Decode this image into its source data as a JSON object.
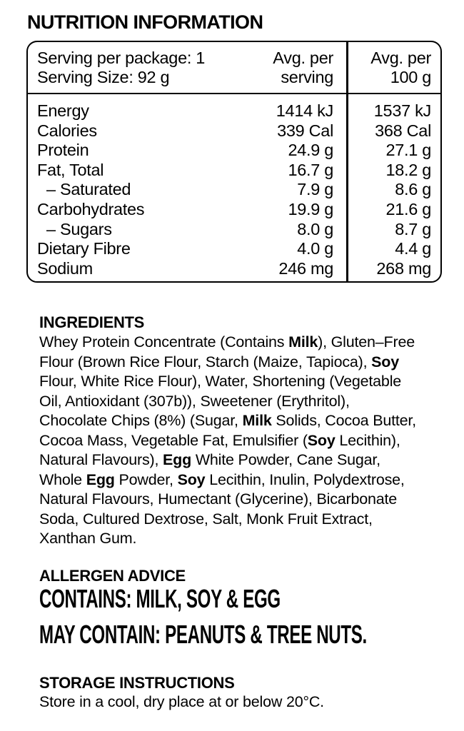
{
  "colors": {
    "ink": "#000000",
    "background": "#ffffff"
  },
  "title": "NUTRITION INFORMATION",
  "nutrition_table": {
    "header": {
      "col1_line1": "Serving per package: 1",
      "col1_line2": "Serving Size: 92 g",
      "col2_line1": "Avg. per",
      "col2_line2": "serving",
      "col3_line1": "Avg. per",
      "col3_line2": "100 g"
    },
    "rows": [
      {
        "label": "Energy",
        "per_serving": "1414 kJ",
        "per_100g": "1537 kJ",
        "indent": false
      },
      {
        "label": "Calories",
        "per_serving": "339 Cal",
        "per_100g": "368 Cal",
        "indent": false
      },
      {
        "label": "Protein",
        "per_serving": "24.9 g",
        "per_100g": "27.1 g",
        "indent": false
      },
      {
        "label": "Fat, Total",
        "per_serving": "16.7 g",
        "per_100g": "18.2 g",
        "indent": false
      },
      {
        "label": "– Saturated",
        "per_serving": "7.9 g",
        "per_100g": "8.6 g",
        "indent": true
      },
      {
        "label": "Carbohydrates",
        "per_serving": "19.9 g",
        "per_100g": "21.6 g",
        "indent": false
      },
      {
        "label": "– Sugars",
        "per_serving": "8.0 g",
        "per_100g": "8.7 g",
        "indent": true
      },
      {
        "label": "Dietary Fibre",
        "per_serving": "4.0 g",
        "per_100g": "4.4 g",
        "indent": false
      },
      {
        "label": "Sodium",
        "per_serving": "246 mg",
        "per_100g": "268 mg",
        "indent": false
      }
    ]
  },
  "ingredients": {
    "heading": "INGREDIENTS",
    "runs": [
      {
        "t": "Whey Protein Concentrate (Contains "
      },
      {
        "t": "Milk",
        "b": true
      },
      {
        "t": "), Gluten–Free Flour (Brown Rice Flour, Starch (Maize, Tapioca), "
      },
      {
        "t": "Soy",
        "b": true
      },
      {
        "t": " Flour, White Rice Flour), Water, Shortening (Vegetable Oil, Antioxidant (307b)), Sweetener (Erythritol), Chocolate Chips (8%) (Sugar, "
      },
      {
        "t": "Milk",
        "b": true
      },
      {
        "t": " Solids, Cocoa Butter, Cocoa Mass, Vegetable Fat, Emulsifier ("
      },
      {
        "t": "Soy",
        "b": true
      },
      {
        "t": " Lecithin), Natural Flavours), "
      },
      {
        "t": "Egg",
        "b": true
      },
      {
        "t": " White Powder, Cane Sugar, Whole "
      },
      {
        "t": "Egg",
        "b": true
      },
      {
        "t": " Powder, "
      },
      {
        "t": "Soy",
        "b": true
      },
      {
        "t": " Lecithin, Inulin, Polydextrose, Natural Flavours, Humectant (Glycerine), Bicarbonate Soda, Cultured Dextrose, Salt, Monk Fruit Extract, Xanthan Gum."
      }
    ]
  },
  "allergen": {
    "heading": "ALLERGEN ADVICE",
    "contains": "CONTAINS: MILK, SOY & EGG",
    "may_contain": "MAY CONTAIN: PEANUTS & TREE NUTS."
  },
  "storage": {
    "heading": "STORAGE INSTRUCTIONS",
    "text": "Store in a cool, dry place at or below 20°C."
  }
}
